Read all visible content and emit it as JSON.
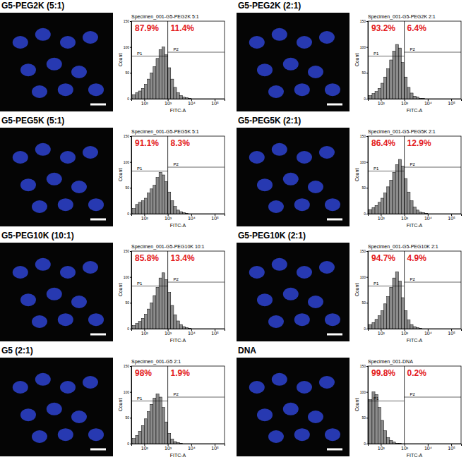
{
  "chart_data": [
    {
      "type": "histogram",
      "title": "G5-PEG2K (5:1)",
      "subtitle": "Specimen_001-G5-PEG2K 5:1",
      "x_label": "FITC-A",
      "y_label": "Count",
      "log": "x",
      "color": "#8c8c8c",
      "bins": [
        31.6,
        42.2,
        56.2,
        75.0,
        100,
        133,
        178,
        237,
        316,
        422,
        562,
        750,
        1000,
        1334,
        1778,
        2371,
        3162,
        4217,
        5623,
        7499,
        10000,
        13335,
        17783,
        23714,
        31623
      ],
      "counts": [
        8,
        12,
        15,
        20,
        28,
        38,
        50,
        62,
        78,
        95,
        100,
        85,
        60,
        38,
        22,
        12,
        6,
        3,
        2,
        1,
        0,
        0,
        0,
        0
      ],
      "xlim": [
        28,
        262144
      ],
      "xticks": [
        {
          "value": 100,
          "label": "10²"
        },
        {
          "value": 1000,
          "label": "10³"
        },
        {
          "value": 10000,
          "label": "10⁴"
        },
        {
          "value": 100000,
          "label": "10⁵"
        }
      ],
      "ylim": [
        0,
        150
      ],
      "yticks": [
        0,
        50,
        100,
        150
      ],
      "threshold": 1000,
      "gates": [
        {
          "name": "P1",
          "value": 87.9,
          "label": "87.9%"
        },
        {
          "name": "P2",
          "value": 11.4,
          "label": "11.4%"
        }
      ]
    },
    {
      "type": "histogram",
      "title": "G5-PEG2K (2:1)",
      "subtitle": "Specimen_001-G5-PEG2K 2:1",
      "x_label": "FITC-A",
      "y_label": "Count",
      "log": "x",
      "color": "#8c8c8c",
      "bins": [
        31.6,
        42.2,
        56.2,
        75.0,
        100,
        133,
        178,
        237,
        316,
        422,
        562,
        750,
        1000,
        1334,
        1778,
        2371,
        3162,
        4217,
        5623,
        7499,
        10000,
        13335,
        17783,
        23714,
        31623
      ],
      "counts": [
        6,
        10,
        14,
        20,
        30,
        42,
        58,
        75,
        92,
        105,
        98,
        70,
        42,
        22,
        11,
        5,
        3,
        1,
        1,
        0,
        0,
        0,
        0,
        0
      ],
      "xlim": [
        28,
        262144
      ],
      "xticks": [
        {
          "value": 100,
          "label": "10²"
        },
        {
          "value": 1000,
          "label": "10³"
        },
        {
          "value": 10000,
          "label": "10⁴"
        },
        {
          "value": 100000,
          "label": "10⁵"
        }
      ],
      "ylim": [
        0,
        150
      ],
      "yticks": [
        0,
        50,
        100,
        150
      ],
      "threshold": 1000,
      "gates": [
        {
          "name": "P1",
          "value": 93.2,
          "label": "93.2%"
        },
        {
          "name": "P2",
          "value": 6.4,
          "label": "6.4%"
        }
      ]
    },
    {
      "type": "histogram",
      "title": "G5-PEG5K (5:1)",
      "subtitle": "Specimen_001-G5-PEG5K 5:1",
      "x_label": "FITC-A",
      "y_label": "Count",
      "log": "x",
      "color": "#8c8c8c",
      "bins": [
        31.6,
        42.2,
        56.2,
        75.0,
        100,
        133,
        178,
        237,
        316,
        422,
        562,
        750,
        1000,
        1334,
        1778,
        2371,
        3162,
        4217,
        5623,
        7499,
        10000,
        13335,
        17783,
        23714,
        31623
      ],
      "counts": [
        10,
        18,
        22,
        25,
        30,
        40,
        48,
        55,
        70,
        80,
        75,
        62,
        42,
        25,
        14,
        7,
        4,
        2,
        1,
        0,
        0,
        0,
        0,
        0
      ],
      "xlim": [
        28,
        262144
      ],
      "xticks": [
        {
          "value": 100,
          "label": "10²"
        },
        {
          "value": 1000,
          "label": "10³"
        },
        {
          "value": 10000,
          "label": "10⁴"
        },
        {
          "value": 100000,
          "label": "10⁵"
        }
      ],
      "ylim": [
        0,
        150
      ],
      "yticks": [
        0,
        50,
        100,
        150
      ],
      "threshold": 1000,
      "gates": [
        {
          "name": "P1",
          "value": 91.1,
          "label": "91.1%"
        },
        {
          "name": "P2",
          "value": 8.3,
          "label": "8.3%"
        }
      ]
    },
    {
      "type": "histogram",
      "title": "G5-PEG5K (2:1)",
      "subtitle": "Specimen_001-G5-PEG5K 2:1",
      "x_label": "FITC-A",
      "y_label": "Count",
      "log": "x",
      "color": "#8c8c8c",
      "bins": [
        31.6,
        42.2,
        56.2,
        75.0,
        100,
        133,
        178,
        237,
        316,
        422,
        562,
        750,
        1000,
        1334,
        1778,
        2371,
        3162,
        4217,
        5623,
        7499,
        10000,
        13335,
        17783,
        23714,
        31623
      ],
      "counts": [
        8,
        12,
        16,
        22,
        30,
        40,
        52,
        65,
        80,
        95,
        105,
        92,
        68,
        42,
        25,
        13,
        7,
        3,
        2,
        1,
        0,
        0,
        0,
        0
      ],
      "xlim": [
        28,
        262144
      ],
      "xticks": [
        {
          "value": 100,
          "label": "10²"
        },
        {
          "value": 1000,
          "label": "10³"
        },
        {
          "value": 10000,
          "label": "10⁴"
        },
        {
          "value": 100000,
          "label": "10⁵"
        }
      ],
      "ylim": [
        0,
        150
      ],
      "yticks": [
        0,
        50,
        100,
        150
      ],
      "threshold": 1000,
      "gates": [
        {
          "name": "P1",
          "value": 86.4,
          "label": "86.4%"
        },
        {
          "name": "P2",
          "value": 12.9,
          "label": "12.9%"
        }
      ]
    },
    {
      "type": "histogram",
      "title": "G5-PEG10K (10:1)",
      "subtitle": "Specimen_001-G5-PEG10K 10:1",
      "x_label": "FITC-A",
      "y_label": "Count",
      "log": "x",
      "color": "#8c8c8c",
      "bins": [
        31.6,
        42.2,
        56.2,
        75.0,
        100,
        133,
        178,
        237,
        316,
        422,
        562,
        750,
        1000,
        1334,
        1778,
        2371,
        3162,
        4217,
        5623,
        7499,
        10000,
        13335,
        17783,
        23714,
        31623
      ],
      "counts": [
        6,
        10,
        14,
        20,
        28,
        38,
        50,
        64,
        80,
        98,
        108,
        95,
        70,
        45,
        27,
        15,
        8,
        4,
        2,
        1,
        0,
        0,
        0,
        0
      ],
      "xlim": [
        28,
        262144
      ],
      "xticks": [
        {
          "value": 100,
          "label": "10²"
        },
        {
          "value": 1000,
          "label": "10³"
        },
        {
          "value": 10000,
          "label": "10⁴"
        },
        {
          "value": 100000,
          "label": "10⁵"
        }
      ],
      "ylim": [
        0,
        150
      ],
      "yticks": [
        0,
        50,
        100,
        150
      ],
      "threshold": 1000,
      "gates": [
        {
          "name": "P1",
          "value": 85.8,
          "label": "85.8%"
        },
        {
          "name": "P2",
          "value": 13.4,
          "label": "13.4%"
        }
      ]
    },
    {
      "type": "histogram",
      "title": "G5-PEG10K (2:1)",
      "subtitle": "Specimen_001-G5-PEG10K 2:1",
      "x_label": "FITC-A",
      "y_label": "Count",
      "log": "x",
      "color": "#8c8c8c",
      "bins": [
        31.6,
        42.2,
        56.2,
        75.0,
        100,
        133,
        178,
        237,
        316,
        422,
        562,
        750,
        1000,
        1334,
        1778,
        2371,
        3162,
        4217,
        5623,
        7499,
        10000,
        13335,
        17783,
        23714,
        31623
      ],
      "counts": [
        8,
        12,
        18,
        25,
        35,
        48,
        62,
        80,
        98,
        110,
        92,
        60,
        35,
        17,
        8,
        4,
        2,
        1,
        0,
        0,
        0,
        0,
        0,
        0
      ],
      "xlim": [
        28,
        262144
      ],
      "xticks": [
        {
          "value": 100,
          "label": "10²"
        },
        {
          "value": 1000,
          "label": "10³"
        },
        {
          "value": 10000,
          "label": "10⁴"
        },
        {
          "value": 100000,
          "label": "10⁵"
        }
      ],
      "ylim": [
        0,
        150
      ],
      "yticks": [
        0,
        50,
        100,
        150
      ],
      "threshold": 1000,
      "gates": [
        {
          "name": "P1",
          "value": 94.7,
          "label": "94.7%"
        },
        {
          "name": "P2",
          "value": 4.9,
          "label": "4.9%"
        }
      ]
    },
    {
      "type": "histogram",
      "title": "G5 (2:1)",
      "subtitle": "Specimen_001-G5 2:1",
      "x_label": "FITC-A",
      "y_label": "Count",
      "log": "x",
      "color": "#8c8c8c",
      "bins": [
        31.6,
        42.2,
        56.2,
        75.0,
        100,
        133,
        178,
        237,
        316,
        422,
        562,
        750,
        1000,
        1334,
        1778,
        2371,
        3162,
        4217,
        5623,
        7499,
        10000,
        13335,
        17783,
        23714,
        31623
      ],
      "counts": [
        10,
        16,
        24,
        35,
        48,
        62,
        76,
        88,
        96,
        90,
        70,
        42,
        20,
        9,
        4,
        2,
        1,
        0,
        0,
        0,
        0,
        0,
        0,
        0
      ],
      "xlim": [
        28,
        262144
      ],
      "xticks": [
        {
          "value": 100,
          "label": "10²"
        },
        {
          "value": 1000,
          "label": "10³"
        },
        {
          "value": 10000,
          "label": "10⁴"
        },
        {
          "value": 100000,
          "label": "10⁵"
        }
      ],
      "ylim": [
        0,
        150
      ],
      "yticks": [
        0,
        50,
        100,
        150
      ],
      "threshold": 1000,
      "gates": [
        {
          "name": "P1",
          "value": 98,
          "label": "98%"
        },
        {
          "name": "P2",
          "value": 1.9,
          "label": "1.9%"
        }
      ]
    },
    {
      "type": "histogram",
      "title": "DNA",
      "subtitle": "Specimen_001-DNA",
      "x_label": "FITC-A",
      "y_label": "Count",
      "log": "x",
      "color": "#8c8c8c",
      "bins": [
        31.6,
        42.2,
        56.2,
        75.0,
        100,
        133,
        178,
        237,
        316,
        422,
        562,
        750,
        1000,
        1334,
        1778,
        2371,
        3162,
        4217,
        5623,
        7499,
        10000,
        13335,
        17783,
        23714,
        31623
      ],
      "counts": [
        85,
        100,
        95,
        70,
        45,
        25,
        12,
        6,
        3,
        1,
        1,
        0,
        0,
        0,
        0,
        0,
        0,
        0,
        0,
        0,
        0,
        0,
        0,
        0
      ],
      "xlim": [
        28,
        262144
      ],
      "xticks": [
        {
          "value": 100,
          "label": "10²"
        },
        {
          "value": 1000,
          "label": "10³"
        },
        {
          "value": 10000,
          "label": "10⁴"
        },
        {
          "value": 100000,
          "label": "10⁵"
        }
      ],
      "ylim": [
        0,
        150
      ],
      "yticks": [
        0,
        50,
        100,
        150
      ],
      "threshold": 1000,
      "gates": [
        {
          "name": "P1",
          "value": 99.8,
          "label": "99.8%"
        },
        {
          "name": "P2",
          "value": 0.2,
          "label": "0.2%"
        }
      ]
    }
  ]
}
